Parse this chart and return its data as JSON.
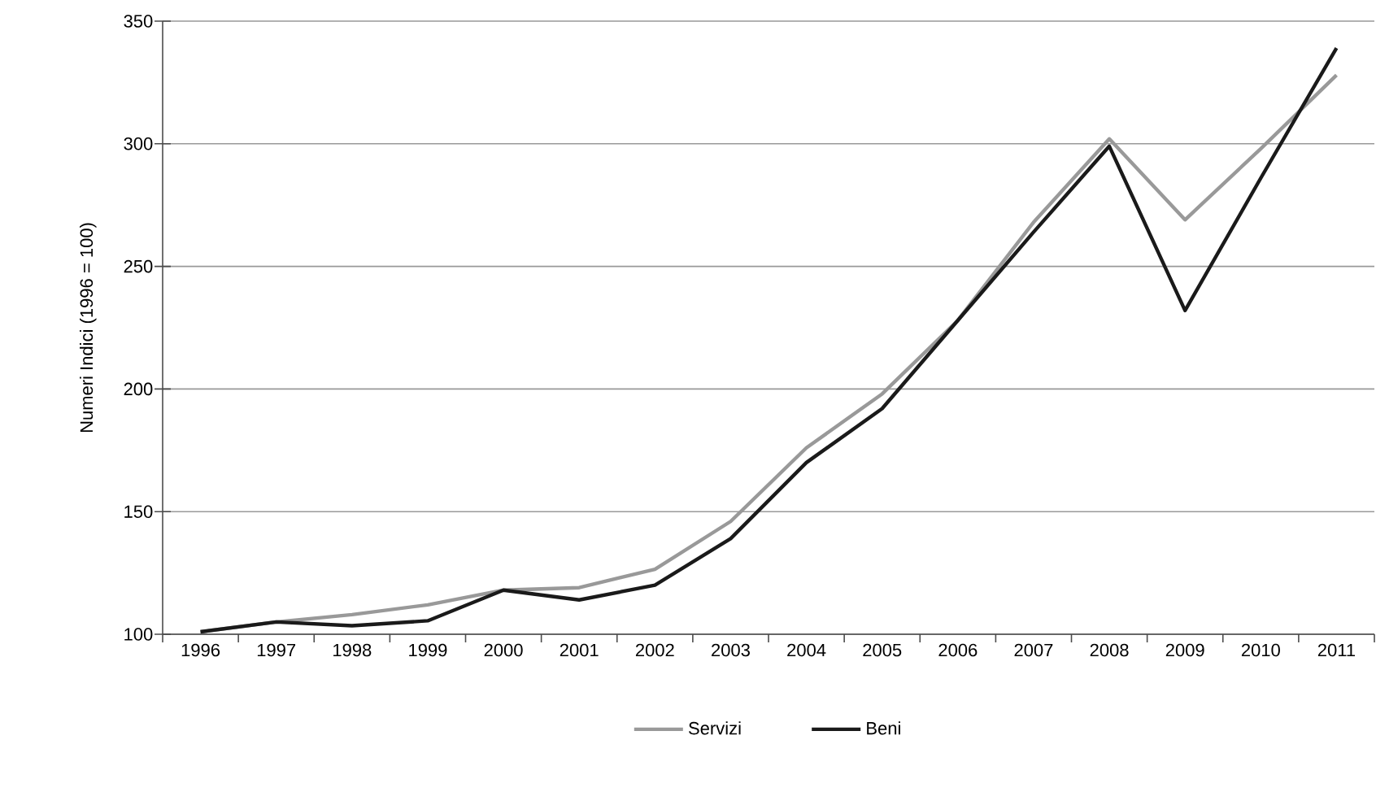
{
  "chart_data": {
    "type": "line",
    "ylabel": "Numeri Indici (1996 = 100)",
    "categories": [
      "1996",
      "1997",
      "1998",
      "1999",
      "2000",
      "2001",
      "2002",
      "2003",
      "2004",
      "2005",
      "2006",
      "2007",
      "2008",
      "2009",
      "2010",
      "2011"
    ],
    "ylim": [
      100,
      350
    ],
    "yticks": [
      100,
      150,
      200,
      250,
      300,
      350
    ],
    "grid": "y",
    "legend": "bottom",
    "series": [
      {
        "name": "Servizi",
        "color": "#999999",
        "values": [
          101,
          105,
          108,
          112,
          118,
          119,
          126.5,
          146,
          176,
          198,
          228,
          268,
          302,
          269,
          298,
          328
        ]
      },
      {
        "name": "Beni",
        "color": "#1a1a1a",
        "values": [
          101,
          105,
          103.5,
          105.5,
          118,
          114,
          120,
          139,
          170,
          192,
          228,
          264,
          299,
          232,
          286,
          339
        ]
      }
    ]
  }
}
